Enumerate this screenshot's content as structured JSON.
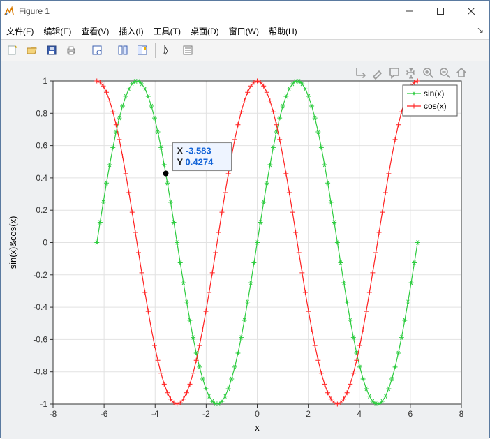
{
  "window": {
    "title": "Figure 1"
  },
  "menu": {
    "file": "文件(F)",
    "edit": "编辑(E)",
    "view": "查看(V)",
    "insert": "插入(I)",
    "tools": "工具(T)",
    "desktop": "桌面(D)",
    "window": "窗口(W)",
    "help": "帮助(H)"
  },
  "chart": {
    "xlabel": "x",
    "ylabel": "sin(x)&cos(x)",
    "xlim": [
      -8,
      8
    ],
    "ylim": [
      -1,
      1
    ],
    "xticks": [
      -8,
      -6,
      -4,
      -2,
      0,
      2,
      4,
      6,
      8
    ],
    "yticks": [
      -1,
      -0.8,
      -0.6,
      -0.4,
      -0.2,
      0,
      0.2,
      0.4,
      0.6,
      0.8,
      1
    ],
    "xtick_labels": [
      "-8",
      "-6",
      "-4",
      "-2",
      "0",
      "2",
      "4",
      "6",
      "8"
    ],
    "ytick_labels": [
      "-1",
      "-0.8",
      "-0.6",
      "-0.4",
      "-0.2",
      "0",
      "0.2",
      "0.4",
      "0.6",
      "0.8",
      "1"
    ],
    "bg": "#ffffff",
    "figure_bg": "#eef0f2",
    "axis_color": "#333333",
    "grid_color": "#e2e2e2",
    "axis_fontsize": 12,
    "label_fontsize": 13,
    "series": [
      {
        "name": "sin(x)",
        "fn": "sin",
        "color": "#2ecc40",
        "marker": "star",
        "xmin": -6.2832,
        "xmax": 6.2832,
        "n": 101,
        "linewidth": 1.2
      },
      {
        "name": "cos(x)",
        "fn": "cos",
        "color": "#ff2020",
        "marker": "plus",
        "xmin": -6.2832,
        "xmax": 6.2832,
        "n": 101,
        "linewidth": 1.2
      }
    ],
    "legend": {
      "entries": [
        "sin(x)",
        "cos(x)"
      ],
      "pos": "ne",
      "bg": "#ffffff",
      "border": "#555555",
      "fontsize": 12
    },
    "datatip": {
      "x_label": "X",
      "y_label": "Y",
      "x_value": "-3.583",
      "y_value": "0.4274",
      "point_x": -3.583,
      "point_y": 0.4274,
      "box_bg": "#eef4ff",
      "box_border": "#888888",
      "label_color": "#222222",
      "value_color": "#1565d8",
      "fontsize": 13
    },
    "axtoolbar_color": "#9a9a9a"
  }
}
